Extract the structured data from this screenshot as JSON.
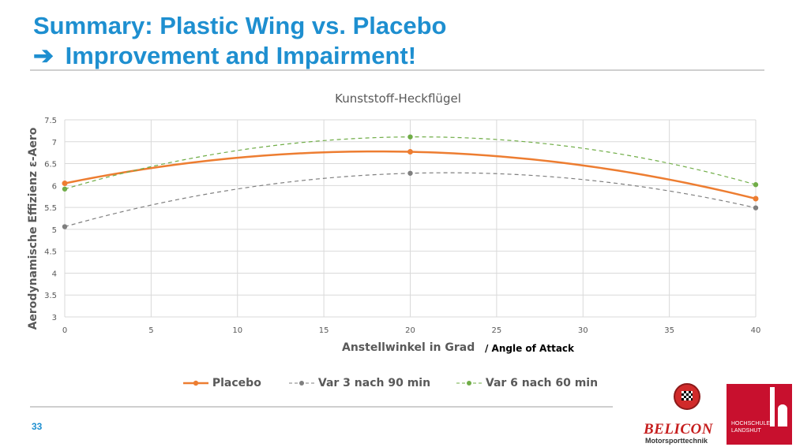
{
  "slide": {
    "title_line1": "Summary: Plastic Wing vs. Placebo",
    "title_arrow": "➔",
    "title_line2": "Improvement and Impairment!",
    "page_number": "33"
  },
  "logos": {
    "belicon_name": "BELICON",
    "belicon_sub": "Motorsporttechnik",
    "hs_text_line1": "HOCHSCHULE",
    "hs_text_line2": "LANDSHUT"
  },
  "chart_data": {
    "type": "line",
    "title": "Kunststoff-Heckflügel",
    "xlabel": "Anstellwinkel in Grad",
    "xlabel_suffix": "/ Angle of Attack",
    "ylabel": "Aerodynamische Effizienz  ε-Aero",
    "xlim": [
      0,
      40
    ],
    "ylim": [
      3,
      7.5
    ],
    "x_ticks": [
      0,
      5,
      10,
      15,
      20,
      25,
      30,
      35,
      40
    ],
    "y_ticks": [
      3,
      3.5,
      4,
      4.5,
      5,
      5.5,
      6,
      6.5,
      7,
      7.5
    ],
    "grid": true,
    "legend_position": "bottom",
    "x": [
      0,
      20,
      40
    ],
    "series": [
      {
        "name": "Placebo",
        "values": [
          6.05,
          6.77,
          5.7
        ],
        "color": "#ed7d31",
        "style": "solid"
      },
      {
        "name": "Var 3 nach 90 min",
        "values": [
          5.06,
          6.28,
          5.49
        ],
        "color": "#7f7f7f",
        "style": "dashed"
      },
      {
        "name": "Var 6 nach 60 min",
        "values": [
          5.92,
          7.11,
          6.02
        ],
        "color": "#70ad47",
        "style": "dashed"
      }
    ]
  }
}
